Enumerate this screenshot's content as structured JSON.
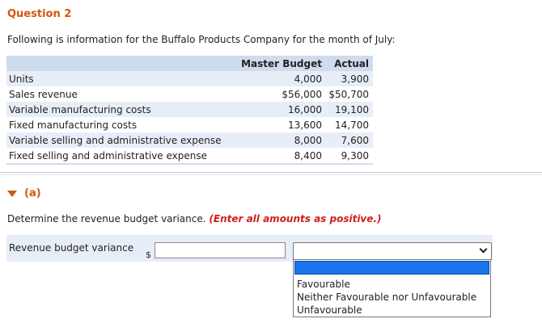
{
  "question": {
    "title": "Question 2",
    "intro": "Following is information for the Buffalo Products Company for the month of July:"
  },
  "table": {
    "headers": [
      "",
      "Master Budget",
      "Actual"
    ],
    "rows": [
      {
        "label": "Units",
        "master": "4,000",
        "actual": "3,900"
      },
      {
        "label": "Sales revenue",
        "master": "$56,000",
        "actual": "$50,700"
      },
      {
        "label": "Variable manufacturing costs",
        "master": "16,000",
        "actual": "19,100"
      },
      {
        "label": "Fixed manufacturing costs",
        "master": "13,600",
        "actual": "14,700"
      },
      {
        "label": "Variable selling and administrative expense",
        "master": "8,000",
        "actual": "7,600"
      },
      {
        "label": "Fixed selling and administrative expense",
        "master": "8,400",
        "actual": "9,300"
      }
    ]
  },
  "part": {
    "label": "(a)",
    "instruction": "Determine the revenue budget variance.",
    "hint": "(Enter all amounts as positive.)"
  },
  "answer": {
    "label": "Revenue budget variance",
    "currency": "$",
    "amount_value": "",
    "select_value": ""
  },
  "dropdown": {
    "options": [
      "",
      "Favourable",
      "Neither Favourable nor Unfavourable",
      "Unfavourable"
    ]
  },
  "colors": {
    "accent": "#d4560f",
    "hint": "#d21d1d",
    "table_header": "#cfdcee",
    "row_shade": "#e8eef8",
    "selected_option": "#1a73e8"
  }
}
